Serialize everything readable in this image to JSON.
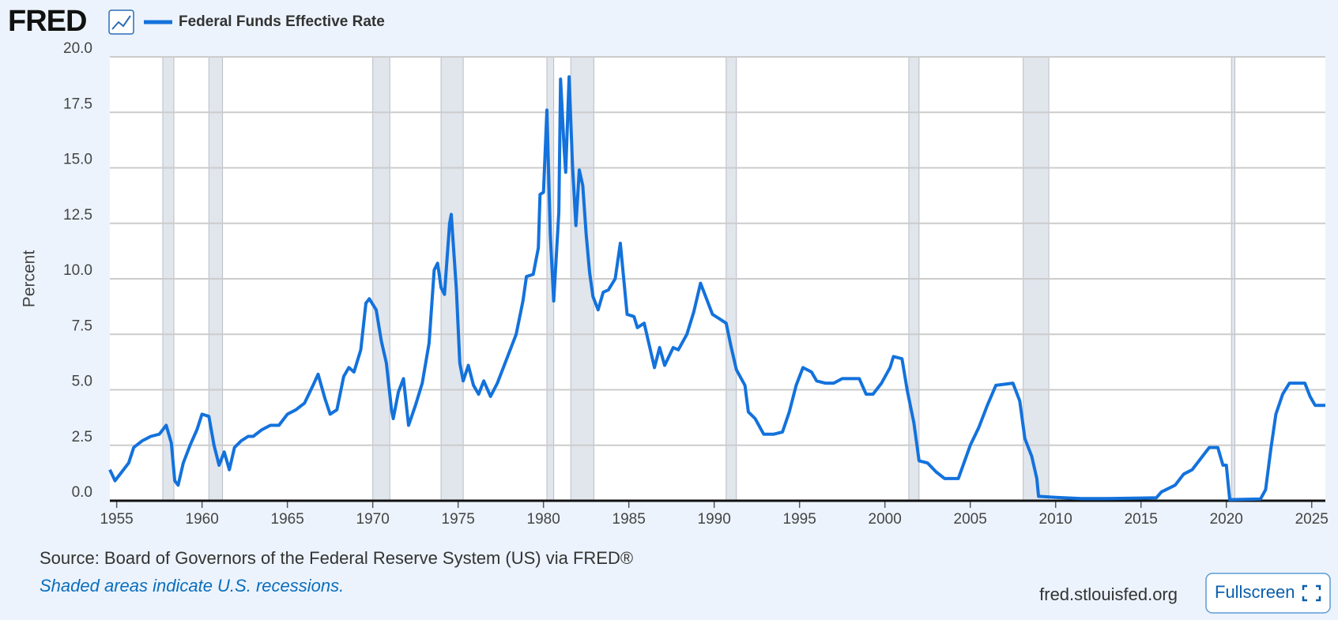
{
  "logo": "FRED",
  "chart_data": {
    "type": "line",
    "ylabel": "Percent",
    "source": "Source: Board of Governors of the Federal Reserve System (US) via FRED®",
    "note": "Shaded areas indicate U.S. recessions.",
    "site": "fred.stlouisfed.org",
    "button": "Fullscreen",
    "xlim": [
      1954.6,
      2025.8
    ],
    "ylim": [
      0,
      20
    ],
    "xticks": [
      1955,
      1960,
      1965,
      1970,
      1975,
      1980,
      1985,
      1990,
      1995,
      2000,
      2005,
      2010,
      2015,
      2020,
      2025
    ],
    "yticks": [
      {
        "value": 0,
        "label": "0.0"
      },
      {
        "value": 2.5,
        "label": "2.5"
      },
      {
        "value": 5,
        "label": "5.0"
      },
      {
        "value": 7.5,
        "label": "7.5"
      },
      {
        "value": 10,
        "label": "10.0"
      },
      {
        "value": 12.5,
        "label": "12.5"
      },
      {
        "value": 15,
        "label": "15.0"
      },
      {
        "value": 17.5,
        "label": "17.5"
      },
      {
        "value": 20,
        "label": "20.0"
      }
    ],
    "grid": true,
    "recessions": [
      [
        1957.7,
        1958.35
      ],
      [
        1960.4,
        1961.2
      ],
      [
        1970.0,
        1971.0
      ],
      [
        1974.0,
        1975.3
      ],
      [
        1980.2,
        1980.6
      ],
      [
        1981.6,
        1982.95
      ],
      [
        1990.7,
        1991.3
      ],
      [
        2001.4,
        2002.0
      ],
      [
        2008.1,
        2009.6
      ],
      [
        2020.3,
        2020.5
      ]
    ],
    "x": [
      1954.6,
      1954.9,
      1955.3,
      1955.7,
      1956.0,
      1956.5,
      1957.0,
      1957.5,
      1957.9,
      1958.2,
      1958.4,
      1958.6,
      1958.9,
      1959.3,
      1959.7,
      1960.0,
      1960.4,
      1960.7,
      1961.0,
      1961.3,
      1961.6,
      1961.9,
      1962.3,
      1962.7,
      1963.0,
      1963.5,
      1964.0,
      1964.5,
      1965.0,
      1965.5,
      1966.0,
      1966.5,
      1966.8,
      1967.2,
      1967.5,
      1967.9,
      1968.3,
      1968.6,
      1968.9,
      1969.3,
      1969.6,
      1969.8,
      1970.2,
      1970.5,
      1970.8,
      1971.1,
      1971.2,
      1971.5,
      1971.8,
      1972.1,
      1972.5,
      1972.9,
      1973.3,
      1973.6,
      1973.8,
      1974.0,
      1974.2,
      1974.5,
      1974.6,
      1974.9,
      1975.1,
      1975.3,
      1975.6,
      1975.9,
      1976.2,
      1976.5,
      1976.9,
      1977.3,
      1977.7,
      1978.0,
      1978.4,
      1978.8,
      1979.0,
      1979.4,
      1979.7,
      1979.8,
      1980.0,
      1980.2,
      1980.4,
      1980.6,
      1980.9,
      1981.0,
      1981.2,
      1981.3,
      1981.5,
      1981.7,
      1981.9,
      1982.1,
      1982.3,
      1982.5,
      1982.7,
      1982.9,
      1983.2,
      1983.5,
      1983.8,
      1984.2,
      1984.5,
      1984.9,
      1985.3,
      1985.5,
      1985.9,
      1986.2,
      1986.5,
      1986.8,
      1987.1,
      1987.6,
      1987.9,
      1988.4,
      1988.8,
      1989.2,
      1989.5,
      1989.9,
      1990.3,
      1990.7,
      1991.0,
      1991.3,
      1991.8,
      1992.0,
      1992.4,
      1992.9,
      1993.5,
      1994.0,
      1994.4,
      1994.8,
      1995.2,
      1995.7,
      1996.0,
      1996.5,
      1997.0,
      1997.5,
      1998.5,
      1998.9,
      1999.3,
      1999.8,
      2000.3,
      2000.5,
      2001.0,
      2001.3,
      2001.7,
      2002.0,
      2002.5,
      2003.0,
      2003.5,
      2004.3,
      2005.0,
      2005.5,
      2006.0,
      2006.5,
      2007.5,
      2007.9,
      2008.2,
      2008.6,
      2008.9,
      2009.0,
      2010.0,
      2011.5,
      2013.0,
      2015.0,
      2015.9,
      2016.2,
      2017.0,
      2017.5,
      2018.0,
      2018.5,
      2019.0,
      2019.5,
      2019.8,
      2020.0,
      2020.2,
      2022.0,
      2022.3,
      2022.6,
      2022.9,
      2023.3,
      2023.7,
      2024.6,
      2024.9,
      2025.2,
      2025.8
    ],
    "series": [
      {
        "name": "Federal Funds Effective Rate",
        "color": "#1372dc",
        "values": [
          1.4,
          0.9,
          1.3,
          1.7,
          2.4,
          2.7,
          2.9,
          3.0,
          3.4,
          2.6,
          0.9,
          0.7,
          1.7,
          2.5,
          3.2,
          3.9,
          3.8,
          2.5,
          1.6,
          2.2,
          1.4,
          2.4,
          2.7,
          2.9,
          2.9,
          3.2,
          3.4,
          3.4,
          3.9,
          4.1,
          4.4,
          5.2,
          5.7,
          4.6,
          3.9,
          4.1,
          5.6,
          6.0,
          5.8,
          6.8,
          8.9,
          9.1,
          8.6,
          7.2,
          6.2,
          4.1,
          3.7,
          4.9,
          5.5,
          3.4,
          4.3,
          5.3,
          7.1,
          10.4,
          10.7,
          9.6,
          9.3,
          12.5,
          12.9,
          9.5,
          6.2,
          5.4,
          6.1,
          5.2,
          4.8,
          5.4,
          4.7,
          5.3,
          6.1,
          6.7,
          7.5,
          9.0,
          10.1,
          10.2,
          11.4,
          13.8,
          13.9,
          17.6,
          12.0,
          9.0,
          13.0,
          19.0,
          16.0,
          14.8,
          19.1,
          15.1,
          12.4,
          14.9,
          14.2,
          12.0,
          10.3,
          9.2,
          8.6,
          9.4,
          9.5,
          10.0,
          11.6,
          8.4,
          8.3,
          7.8,
          8.0,
          7.0,
          6.0,
          6.9,
          6.1,
          6.9,
          6.8,
          7.5,
          8.5,
          9.8,
          9.2,
          8.4,
          8.2,
          8.0,
          6.9,
          5.9,
          5.2,
          4.0,
          3.7,
          3.0,
          3.0,
          3.1,
          4.0,
          5.2,
          6.0,
          5.8,
          5.4,
          5.3,
          5.3,
          5.5,
          5.5,
          4.8,
          4.8,
          5.3,
          6.0,
          6.5,
          6.4,
          5.0,
          3.5,
          1.8,
          1.7,
          1.3,
          1.0,
          1.0,
          2.5,
          3.3,
          4.3,
          5.2,
          5.3,
          4.5,
          2.8,
          2.0,
          1.0,
          0.2,
          0.15,
          0.1,
          0.1,
          0.12,
          0.13,
          0.4,
          0.7,
          1.2,
          1.4,
          1.9,
          2.4,
          2.4,
          1.6,
          1.6,
          0.05,
          0.08,
          0.5,
          2.3,
          3.9,
          4.8,
          5.3,
          5.3,
          4.7,
          4.3,
          4.3
        ]
      }
    ]
  }
}
